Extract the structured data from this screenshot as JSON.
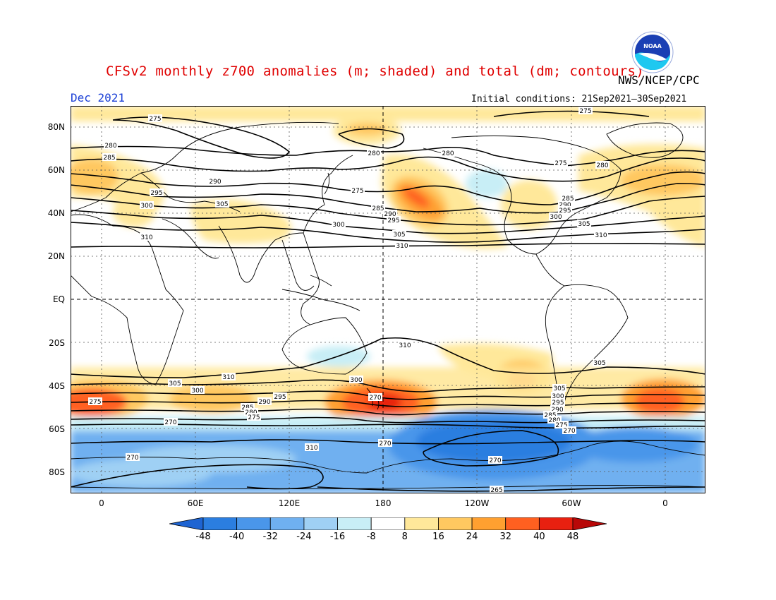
{
  "title": "CFSv2 monthly z700 anomalies (m; shaded) and total (dm; contours)",
  "agency": "NWS/NCEP/CPC",
  "logo_text": "NOAA",
  "valid_month": "Dec 2021",
  "initial_conditions": "Initial conditions: 21Sep2021–30Sep2021",
  "lat_labels": [
    "80N",
    "60N",
    "40N",
    "20N",
    "EQ",
    "20S",
    "40S",
    "60S",
    "80S"
  ],
  "lon_labels": [
    "0",
    "60E",
    "120E",
    "180",
    "120W",
    "60W",
    "0"
  ],
  "colorbar": {
    "labels": [
      "-48",
      "-40",
      "-32",
      "-24",
      "-16",
      "-8",
      "8",
      "16",
      "24",
      "32",
      "40",
      "48"
    ],
    "colors": [
      "#1e64d2",
      "#2b7ee0",
      "#4a96ea",
      "#6fb0f0",
      "#9fd0f4",
      "#c8eef6",
      "#ffffff",
      "#ffe89a",
      "#ffc860",
      "#ffa030",
      "#ff6020",
      "#e82010",
      "#b80808"
    ]
  },
  "contour_labels": [
    {
      "text": "275"
    },
    {
      "text": "280"
    },
    {
      "text": "285"
    },
    {
      "text": "290"
    },
    {
      "text": "295"
    },
    {
      "text": "300"
    },
    {
      "text": "305"
    },
    {
      "text": "310"
    },
    {
      "text": "275"
    },
    {
      "text": "280"
    },
    {
      "text": "285"
    },
    {
      "text": "290"
    },
    {
      "text": "295"
    },
    {
      "text": "300"
    },
    {
      "text": "305"
    },
    {
      "text": "310"
    },
    {
      "text": "275"
    },
    {
      "text": "280"
    },
    {
      "text": "285"
    },
    {
      "text": "290"
    },
    {
      "text": "295"
    },
    {
      "text": "300"
    },
    {
      "text": "305"
    },
    {
      "text": "310"
    },
    {
      "text": "280"
    },
    {
      "text": "275"
    },
    {
      "text": "310"
    },
    {
      "text": "305"
    },
    {
      "text": "300"
    },
    {
      "text": "295"
    },
    {
      "text": "290"
    },
    {
      "text": "285"
    },
    {
      "text": "280"
    },
    {
      "text": "275"
    },
    {
      "text": "270"
    },
    {
      "text": "310"
    },
    {
      "text": "305"
    },
    {
      "text": "300"
    },
    {
      "text": "295"
    },
    {
      "text": "290"
    },
    {
      "text": "285"
    },
    {
      "text": "280"
    },
    {
      "text": "275"
    },
    {
      "text": "270"
    },
    {
      "text": "310"
    },
    {
      "text": "305"
    },
    {
      "text": "300"
    },
    {
      "text": "270"
    },
    {
      "text": "270"
    },
    {
      "text": "270"
    },
    {
      "text": "265"
    },
    {
      "text": "270"
    },
    {
      "text": "295"
    },
    {
      "text": "275"
    }
  ]
}
